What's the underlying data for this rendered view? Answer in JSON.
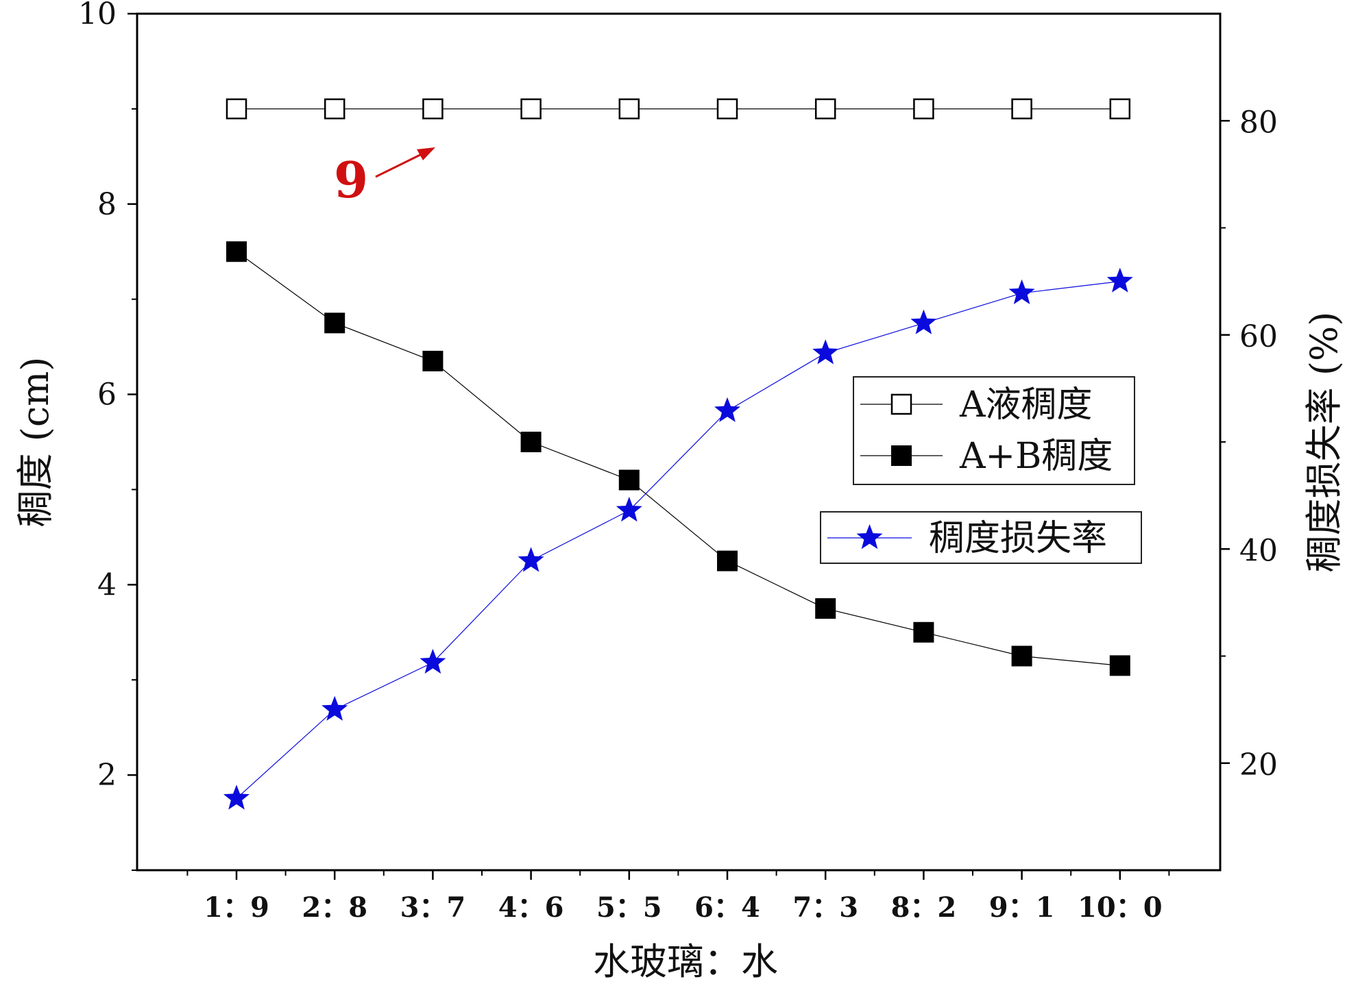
{
  "chart_data": {
    "type": "line",
    "categories": [
      "1：9",
      "2：8",
      "3：7",
      "4：6",
      "5：5",
      "6：4",
      "7：3",
      "8：2",
      "9：1",
      "10：0"
    ],
    "xlabel": "水玻璃：水",
    "ylabel_left": "稠度 (cm)",
    "ylabel_right": "稠度损失率 (%)",
    "ylim_left": [
      1,
      10
    ],
    "ylim_right": [
      10,
      90
    ],
    "yticks_left": [
      "2",
      "4",
      "6",
      "8",
      "10"
    ],
    "yticks_right": [
      "20",
      "40",
      "60",
      "80"
    ],
    "grid": false,
    "legend_position": "center-right",
    "series": [
      {
        "name": "A液稠度",
        "axis": "left",
        "marker": "open-square",
        "color": "#000000",
        "values": [
          9,
          9,
          9,
          9,
          9,
          9,
          9,
          9,
          9,
          9
        ]
      },
      {
        "name": "A+B稠度",
        "axis": "left",
        "marker": "filled-square",
        "color": "#000000",
        "values": [
          7.5,
          6.75,
          6.35,
          5.5,
          5.1,
          4.25,
          3.75,
          3.5,
          3.25,
          3.15
        ]
      },
      {
        "name": "稠度损失率",
        "axis": "right",
        "marker": "star",
        "color": "#0a0adc",
        "values": [
          16.7,
          25,
          29.4,
          38.9,
          43.6,
          52.9,
          58.3,
          61.1,
          63.9,
          65
        ]
      }
    ],
    "annotation": {
      "text": "9",
      "color": "#d01010",
      "points_to_series": "A液稠度",
      "points_to_index": 2
    }
  }
}
